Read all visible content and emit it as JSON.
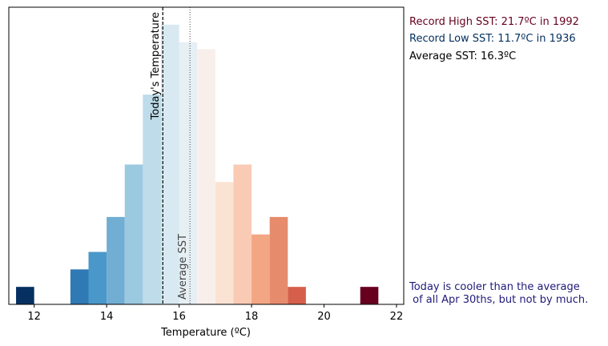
{
  "chart_data": {
    "type": "bar",
    "title": "",
    "xlabel": "Temperature (ºC)",
    "ylabel": "",
    "xlim": [
      11.3,
      22.2
    ],
    "ylim": [
      0,
      8.5
    ],
    "xticks": [
      12,
      14,
      16,
      18,
      20,
      22
    ],
    "bin_width": 0.5,
    "bins": [
      {
        "x": 11.75,
        "count": 0.5,
        "color": "#053061"
      },
      {
        "x": 13.25,
        "count": 1.0,
        "color": "#2f79b5"
      },
      {
        "x": 13.75,
        "count": 1.5,
        "color": "#4a98c9"
      },
      {
        "x": 14.25,
        "count": 2.5,
        "color": "#72add3"
      },
      {
        "x": 14.75,
        "count": 4.0,
        "color": "#9bc9e0"
      },
      {
        "x": 15.25,
        "count": 6.0,
        "color": "#bedcea"
      },
      {
        "x": 15.75,
        "count": 8.0,
        "color": "#d8e9f1"
      },
      {
        "x": 16.25,
        "count": 7.5,
        "color": "#e6eff4"
      },
      {
        "x": 16.75,
        "count": 7.3,
        "color": "#f8efea"
      },
      {
        "x": 17.25,
        "count": 3.5,
        "color": "#fbe3d4"
      },
      {
        "x": 17.75,
        "count": 4.0,
        "color": "#f9cbb4"
      },
      {
        "x": 18.25,
        "count": 2.0,
        "color": "#f3a684"
      },
      {
        "x": 18.75,
        "count": 2.5,
        "color": "#e78b6d"
      },
      {
        "x": 19.25,
        "count": 0.5,
        "color": "#d65f4c"
      },
      {
        "x": 21.25,
        "count": 0.5,
        "color": "#67001f"
      }
    ],
    "today_temperature": 15.55,
    "average_sst": 16.3,
    "vlines": [
      {
        "label": "Today's Temperature",
        "value": 15.55,
        "style": "dashed",
        "color": "#000000"
      },
      {
        "label": "Average SST",
        "value": 16.3,
        "style": "dotted",
        "color": "#444444"
      }
    ]
  },
  "side_panel": {
    "record_high": {
      "text": "Record High SST: 21.7ºC in 1992",
      "color": "#67001f"
    },
    "record_low": {
      "text": "Record Low SST: 11.7ºC in 1936",
      "color": "#053061"
    },
    "average": {
      "text": "Average SST: 16.3ºC",
      "color": "#000000"
    },
    "verdict": {
      "text": "Today is cooler than the average\n of all Apr 30ths, but not by much.",
      "color": "#1f1a7a"
    }
  }
}
